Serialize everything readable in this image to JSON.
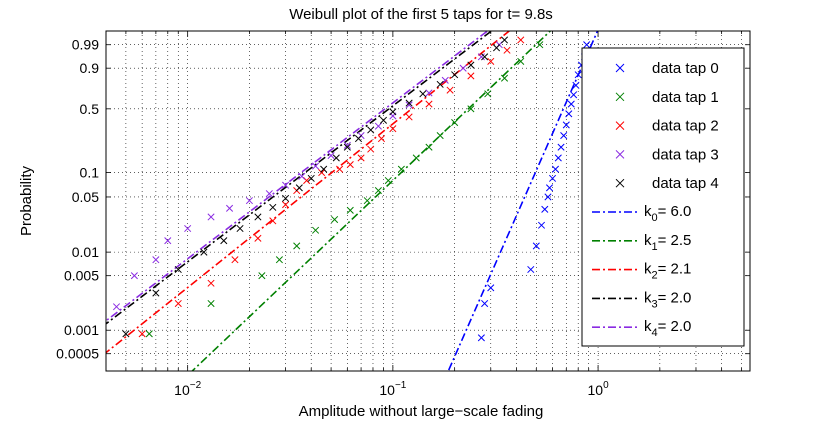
{
  "chart_data": {
    "type": "scatter",
    "title": "Weibull plot of the first 5 taps for t= 9.8s",
    "xlabel": "Amplitude without large−scale fading",
    "ylabel": "Probability",
    "xscale": "log",
    "yscale": "weibull",
    "xlim": [
      0.004,
      5.5
    ],
    "ylim": [
      0.0003,
      0.999
    ],
    "grid": true,
    "legend_position": "right",
    "x_ticks": [
      {
        "value": 0.01,
        "base": "10",
        "exp": "−2"
      },
      {
        "value": 0.1,
        "base": "10",
        "exp": "−1"
      },
      {
        "value": 1,
        "base": "10",
        "exp": "0"
      }
    ],
    "y_ticks": [
      {
        "value": 0.0005,
        "label": "0.0005"
      },
      {
        "value": 0.001,
        "label": "0.001"
      },
      {
        "value": 0.005,
        "label": "0.005"
      },
      {
        "value": 0.01,
        "label": "0.01"
      },
      {
        "value": 0.05,
        "label": "0.05"
      },
      {
        "value": 0.1,
        "label": "0.1"
      },
      {
        "value": 0.5,
        "label": "0.5"
      },
      {
        "value": 0.9,
        "label": "0.9"
      },
      {
        "value": 0.99,
        "label": "0.99"
      }
    ],
    "series": [
      {
        "name": "data tap 0",
        "kind": "data",
        "color": "#0000ff",
        "x": [
          0.27,
          0.28,
          0.3,
          0.47,
          0.5,
          0.53,
          0.55,
          0.57,
          0.58,
          0.6,
          0.62,
          0.64,
          0.66,
          0.68,
          0.7,
          0.72,
          0.74,
          0.76,
          0.78,
          0.8,
          0.83,
          0.86,
          0.88
        ],
        "y": [
          0.0008,
          0.0022,
          0.0035,
          0.006,
          0.012,
          0.022,
          0.035,
          0.05,
          0.065,
          0.085,
          0.11,
          0.15,
          0.2,
          0.27,
          0.35,
          0.45,
          0.55,
          0.65,
          0.75,
          0.85,
          0.92,
          0.96,
          0.99
        ]
      },
      {
        "name": "data tap 1",
        "kind": "data",
        "color": "#008000",
        "x": [
          0.0065,
          0.013,
          0.023,
          0.028,
          0.034,
          0.042,
          0.052,
          0.062,
          0.075,
          0.085,
          0.095,
          0.11,
          0.13,
          0.15,
          0.17,
          0.2,
          0.24,
          0.29,
          0.35,
          0.42,
          0.52
        ],
        "y": [
          0.0009,
          0.0022,
          0.005,
          0.008,
          0.012,
          0.019,
          0.026,
          0.034,
          0.045,
          0.06,
          0.08,
          0.11,
          0.15,
          0.2,
          0.27,
          0.37,
          0.5,
          0.66,
          0.82,
          0.94,
          0.99
        ]
      },
      {
        "name": "data tap 2",
        "kind": "data",
        "color": "#ff0000",
        "x": [
          0.006,
          0.009,
          0.013,
          0.017,
          0.022,
          0.026,
          0.03,
          0.034,
          0.038,
          0.045,
          0.055,
          0.062,
          0.07,
          0.078,
          0.088,
          0.1,
          0.12,
          0.15,
          0.19,
          0.24,
          0.3,
          0.36,
          0.42
        ],
        "y": [
          0.0009,
          0.0022,
          0.004,
          0.008,
          0.015,
          0.025,
          0.04,
          0.06,
          0.08,
          0.1,
          0.11,
          0.125,
          0.15,
          0.19,
          0.25,
          0.32,
          0.42,
          0.55,
          0.7,
          0.84,
          0.94,
          0.98,
          0.995
        ]
      },
      {
        "name": "data tap 3",
        "kind": "data",
        "color": "#8a2be2",
        "x": [
          0.0045,
          0.0055,
          0.007,
          0.008,
          0.01,
          0.013,
          0.016,
          0.02,
          0.025,
          0.03,
          0.036,
          0.042,
          0.05,
          0.06,
          0.07,
          0.085,
          0.1,
          0.12,
          0.15,
          0.18,
          0.22,
          0.27,
          0.33
        ],
        "y": [
          0.002,
          0.005,
          0.008,
          0.014,
          0.02,
          0.028,
          0.036,
          0.045,
          0.055,
          0.07,
          0.09,
          0.12,
          0.16,
          0.21,
          0.27,
          0.34,
          0.43,
          0.54,
          0.67,
          0.8,
          0.9,
          0.96,
          0.99
        ]
      },
      {
        "name": "data tap 4",
        "kind": "data",
        "color": "#000000",
        "x": [
          0.005,
          0.007,
          0.009,
          0.012,
          0.015,
          0.018,
          0.022,
          0.026,
          0.03,
          0.035,
          0.04,
          0.046,
          0.053,
          0.06,
          0.068,
          0.078,
          0.09,
          0.1,
          0.12,
          0.14,
          0.17,
          0.2,
          0.24,
          0.28,
          0.32,
          0.35
        ],
        "y": [
          0.0009,
          0.003,
          0.006,
          0.01,
          0.014,
          0.02,
          0.028,
          0.037,
          0.048,
          0.065,
          0.085,
          0.11,
          0.15,
          0.2,
          0.25,
          0.31,
          0.39,
          0.47,
          0.56,
          0.66,
          0.76,
          0.85,
          0.92,
          0.96,
          0.985,
          0.995
        ]
      },
      {
        "name": "k₀= 6.0",
        "kind": "fit",
        "color": "#0000ff",
        "subscript": "0",
        "shape": 6.0,
        "scale": 0.72,
        "label": "= 6.0"
      },
      {
        "name": "k₁= 2.5",
        "kind": "fit",
        "color": "#008000",
        "subscript": "1",
        "shape": 2.5,
        "scale": 0.27,
        "label": "= 2.5"
      },
      {
        "name": "k₂= 2.1",
        "kind": "fit",
        "color": "#ff0000",
        "subscript": "2",
        "shape": 2.1,
        "scale": 0.147,
        "label": "= 2.1"
      },
      {
        "name": "k₃= 2.0",
        "kind": "fit",
        "color": "#000000",
        "subscript": "3",
        "shape": 2.0,
        "scale": 0.115,
        "label": "= 2.0"
      },
      {
        "name": "k₄= 2.0",
        "kind": "fit",
        "color": "#8a2be2",
        "subscript": "4",
        "shape": 2.0,
        "scale": 0.11,
        "label": "= 2.0"
      }
    ]
  }
}
